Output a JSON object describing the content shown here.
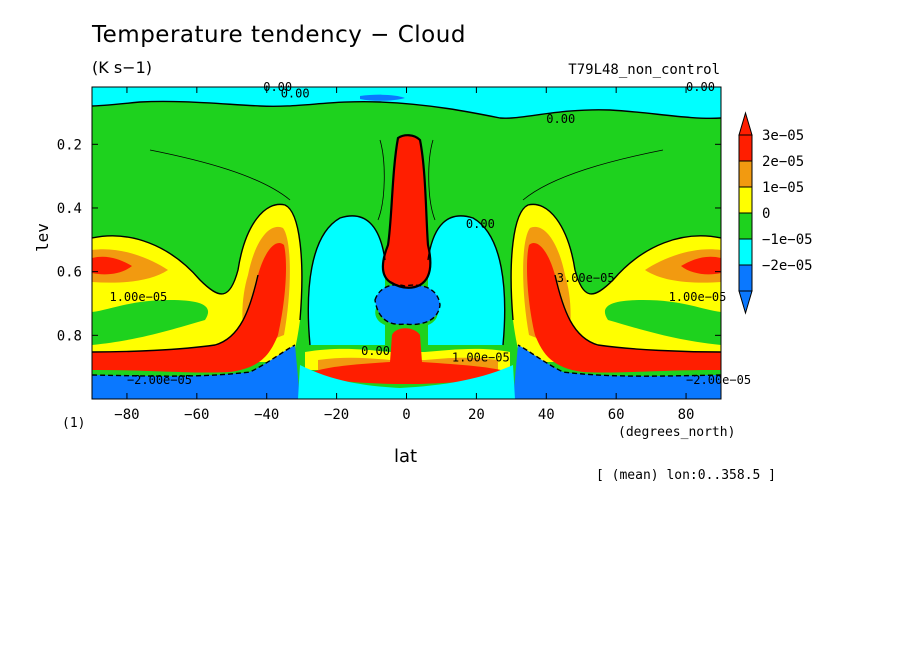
{
  "title": "Temperature tendency − Cloud",
  "units": "(K s−1)",
  "experiment": "T79L48_non_control",
  "y_axis_label": "lev",
  "x_axis_label": "lat",
  "x_axis_units": "(degrees_north)",
  "page_label": "(1)",
  "averaging_note": "[ (mean) lon:0..358.5 ]",
  "chart_data": {
    "type": "heatmap",
    "title": "Temperature tendency − Cloud",
    "xlabel": "lat",
    "ylabel": "lev",
    "xlim": [
      -90,
      90
    ],
    "ylim": [
      1.0,
      0.02
    ],
    "x_ticks": [
      -80,
      -60,
      -40,
      -20,
      0,
      20,
      40,
      60,
      80
    ],
    "x_tick_labels": [
      "−80",
      "−60",
      "−40",
      "−20",
      "0",
      "20",
      "40",
      "60",
      "80"
    ],
    "y_ticks": [
      0.2,
      0.4,
      0.6,
      0.8
    ],
    "y_tick_labels": [
      "0.2",
      "0.4",
      "0.6",
      "0.8"
    ],
    "levels": [
      -2e-05,
      -1e-05,
      0,
      1e-05,
      2e-05,
      3e-05
    ],
    "colorbar": {
      "labels": [
        "3e−05",
        "2e−05",
        "1e−05",
        "0",
        "−1e−05",
        "−2e−05"
      ],
      "colors": [
        "#ff1e00",
        "#f29a10",
        "#ffff00",
        "#1ed21e",
        "#00ffff",
        "#0a78ff"
      ],
      "below_color": "#0a78ff",
      "above_color": "#ff1e00"
    },
    "background_color": "#1ed21e",
    "contour_labels": [
      {
        "text": "0.00",
        "lat": -41,
        "lev": 0.02
      },
      {
        "text": "0.00",
        "lat": -36,
        "lev": 0.04
      },
      {
        "text": "0.00",
        "lat": 80,
        "lev": 0.02
      },
      {
        "text": "0.00",
        "lat": 40,
        "lev": 0.12
      },
      {
        "text": "0.00",
        "lat": 17,
        "lev": 0.45
      },
      {
        "text": "0.00",
        "lat": -13,
        "lev": 0.85
      },
      {
        "text": "1.00e−05",
        "lat": -85,
        "lev": 0.68
      },
      {
        "text": "1.00e−05",
        "lat": 75,
        "lev": 0.68
      },
      {
        "text": "1.00e−05",
        "lat": 13,
        "lev": 0.87
      },
      {
        "text": "−2.00e−05",
        "lat": -80,
        "lev": 0.94
      },
      {
        "text": "−2.00e−05",
        "lat": 80,
        "lev": 0.94
      },
      {
        "text": "3.00e−05",
        "lat": 43,
        "lev": 0.62
      }
    ]
  }
}
